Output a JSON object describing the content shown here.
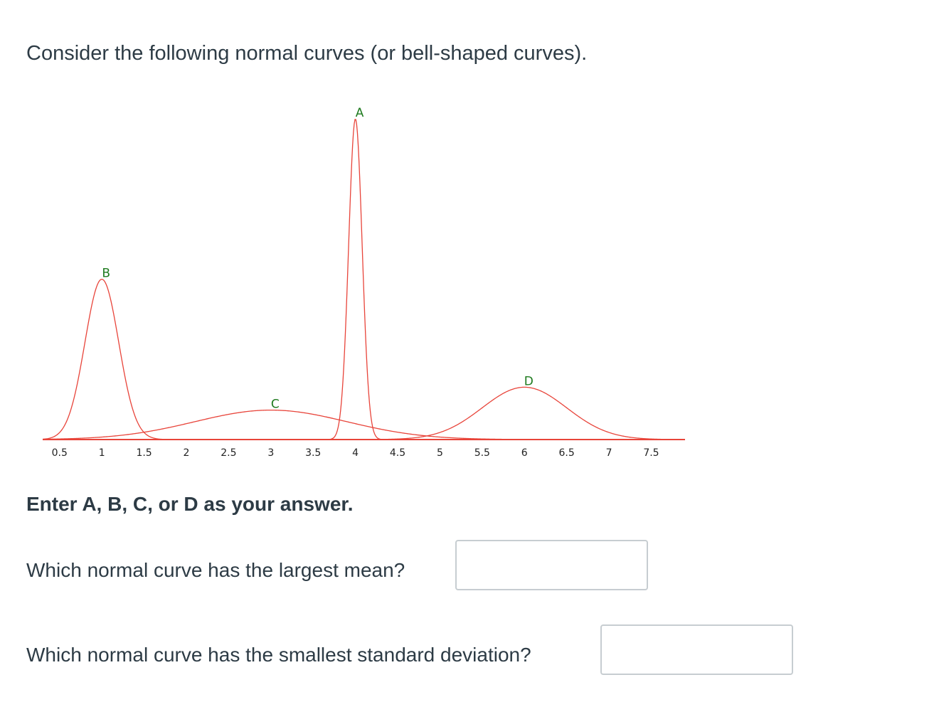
{
  "question": {
    "intro": "Consider the following normal curves (or bell-shaped curves).",
    "instruction": "Enter A, B, C, or D as your answer.",
    "q1": "Which normal curve has the largest mean?",
    "q2": "Which normal curve has the smallest standard deviation?"
  },
  "answers": {
    "q1_value": "",
    "q2_value": ""
  },
  "chart_data": {
    "type": "line",
    "xlim": [
      0.3,
      7.9
    ],
    "ylim": [
      0,
      1.0
    ],
    "x_ticks": [
      "0.5",
      "1",
      "1.5",
      "2",
      "2.5",
      "3",
      "3.5",
      "4",
      "4.5",
      "5",
      "5.5",
      "6",
      "6.5",
      "7",
      "7.5"
    ],
    "grid": false,
    "curve_color": "#e8443a",
    "label_color": "#1e7a1e",
    "series": [
      {
        "name": "A",
        "mean": 4.0,
        "sd": 0.08,
        "peak": 0.98
      },
      {
        "name": "B",
        "mean": 1.0,
        "sd": 0.2,
        "peak": 0.49
      },
      {
        "name": "C",
        "mean": 3.0,
        "sd": 0.9,
        "peak": 0.09
      },
      {
        "name": "D",
        "mean": 6.0,
        "sd": 0.5,
        "peak": 0.16
      }
    ]
  }
}
